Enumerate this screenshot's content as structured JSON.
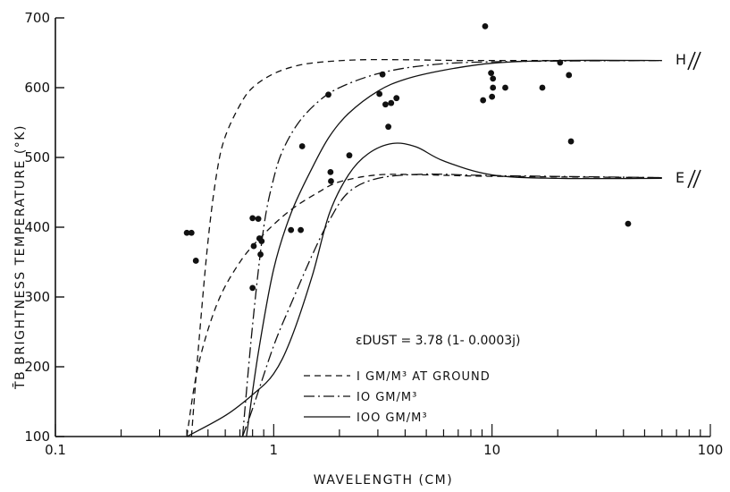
{
  "chart_data": {
    "type": "line",
    "xscale": "log",
    "xlim": [
      0.1,
      100
    ],
    "ylim": [
      100,
      700
    ],
    "xlabel": "WAVELENGTH (CM)",
    "ylabel": "T̄B BRIGHTNESS TEMPERATURE (°K)",
    "x_ticks": [
      "0.1",
      "1",
      "10",
      "100"
    ],
    "y_ticks": [
      100,
      200,
      300,
      400,
      500,
      600,
      700
    ],
    "annotation": "εDUST = 3.78 (1- 0.0003j)",
    "curve_labels": [
      {
        "text": "H",
        "x": 70,
        "y": 640
      },
      {
        "text": "E",
        "x": 70,
        "y": 472
      }
    ],
    "legend": [
      {
        "label": "I GM/M³ AT GROUND",
        "style": "dashed"
      },
      {
        "label": "IO GM/M³",
        "style": "dashdot"
      },
      {
        "label": "IOO GM/M³",
        "style": "solid"
      }
    ],
    "series": [
      {
        "group": "H",
        "style": "dashed",
        "x": [
          0.42,
          0.45,
          0.5,
          0.55,
          0.6,
          0.7,
          0.8,
          1.0,
          1.3,
          1.7,
          2.5,
          4,
          7,
          15,
          60
        ],
        "y": [
          100,
          220,
          380,
          480,
          530,
          575,
          600,
          620,
          632,
          637,
          640,
          640,
          639,
          639,
          639
        ]
      },
      {
        "group": "H",
        "style": "dashdot",
        "x": [
          0.72,
          0.8,
          0.9,
          1.0,
          1.1,
          1.3,
          1.6,
          2,
          3,
          5,
          10,
          60
        ],
        "y": [
          100,
          260,
          400,
          470,
          510,
          550,
          580,
          600,
          620,
          632,
          637,
          639
        ]
      },
      {
        "group": "H",
        "style": "solid",
        "x": [
          0.75,
          0.85,
          1.0,
          1.2,
          1.5,
          1.8,
          2.2,
          3,
          4,
          6,
          10,
          20,
          60
        ],
        "y": [
          100,
          220,
          340,
          420,
          485,
          530,
          563,
          595,
          612,
          625,
          635,
          639,
          639
        ]
      },
      {
        "group": "E",
        "style": "dashed",
        "x": [
          0.4,
          0.45,
          0.55,
          0.7,
          0.9,
          1.2,
          1.6,
          2,
          3,
          5,
          10,
          60
        ],
        "y": [
          100,
          200,
          290,
          350,
          390,
          425,
          450,
          465,
          475,
          475,
          473,
          471
        ]
      },
      {
        "group": "E",
        "style": "dashdot",
        "x": [
          0.72,
          0.8,
          1.0,
          1.2,
          1.5,
          1.8,
          2.2,
          3,
          5,
          10,
          60
        ],
        "y": [
          100,
          140,
          230,
          290,
          360,
          410,
          450,
          470,
          476,
          474,
          471
        ]
      },
      {
        "group": "E",
        "style": "solid",
        "x": [
          0.4,
          0.6,
          0.8,
          1.0,
          1.2,
          1.5,
          1.8,
          2.2,
          2.7,
          3.5,
          4.5,
          6,
          10,
          20,
          60
        ],
        "y": [
          100,
          130,
          160,
          190,
          240,
          330,
          420,
          475,
          505,
          520,
          515,
          495,
          475,
          470,
          470
        ]
      }
    ],
    "points": [
      {
        "x": 0.4,
        "y": 392
      },
      {
        "x": 0.42,
        "y": 392
      },
      {
        "x": 0.44,
        "y": 352
      },
      {
        "x": 0.8,
        "y": 413
      },
      {
        "x": 0.85,
        "y": 412
      },
      {
        "x": 0.86,
        "y": 384
      },
      {
        "x": 0.88,
        "y": 380
      },
      {
        "x": 0.81,
        "y": 373
      },
      {
        "x": 0.87,
        "y": 361
      },
      {
        "x": 0.8,
        "y": 313
      },
      {
        "x": 1.2,
        "y": 396
      },
      {
        "x": 1.33,
        "y": 396
      },
      {
        "x": 1.35,
        "y": 516
      },
      {
        "x": 1.78,
        "y": 590
      },
      {
        "x": 1.82,
        "y": 479
      },
      {
        "x": 1.83,
        "y": 466
      },
      {
        "x": 2.22,
        "y": 503
      },
      {
        "x": 3.05,
        "y": 591
      },
      {
        "x": 3.15,
        "y": 619
      },
      {
        "x": 3.25,
        "y": 576
      },
      {
        "x": 3.35,
        "y": 544
      },
      {
        "x": 3.45,
        "y": 578
      },
      {
        "x": 3.65,
        "y": 585
      },
      {
        "x": 9.3,
        "y": 688
      },
      {
        "x": 9.1,
        "y": 582
      },
      {
        "x": 9.9,
        "y": 621
      },
      {
        "x": 10.1,
        "y": 613
      },
      {
        "x": 10.1,
        "y": 600
      },
      {
        "x": 10.0,
        "y": 587
      },
      {
        "x": 11.5,
        "y": 600
      },
      {
        "x": 17.0,
        "y": 600
      },
      {
        "x": 20.5,
        "y": 636
      },
      {
        "x": 22.5,
        "y": 618
      },
      {
        "x": 23.0,
        "y": 523
      },
      {
        "x": 42.0,
        "y": 405
      }
    ]
  }
}
